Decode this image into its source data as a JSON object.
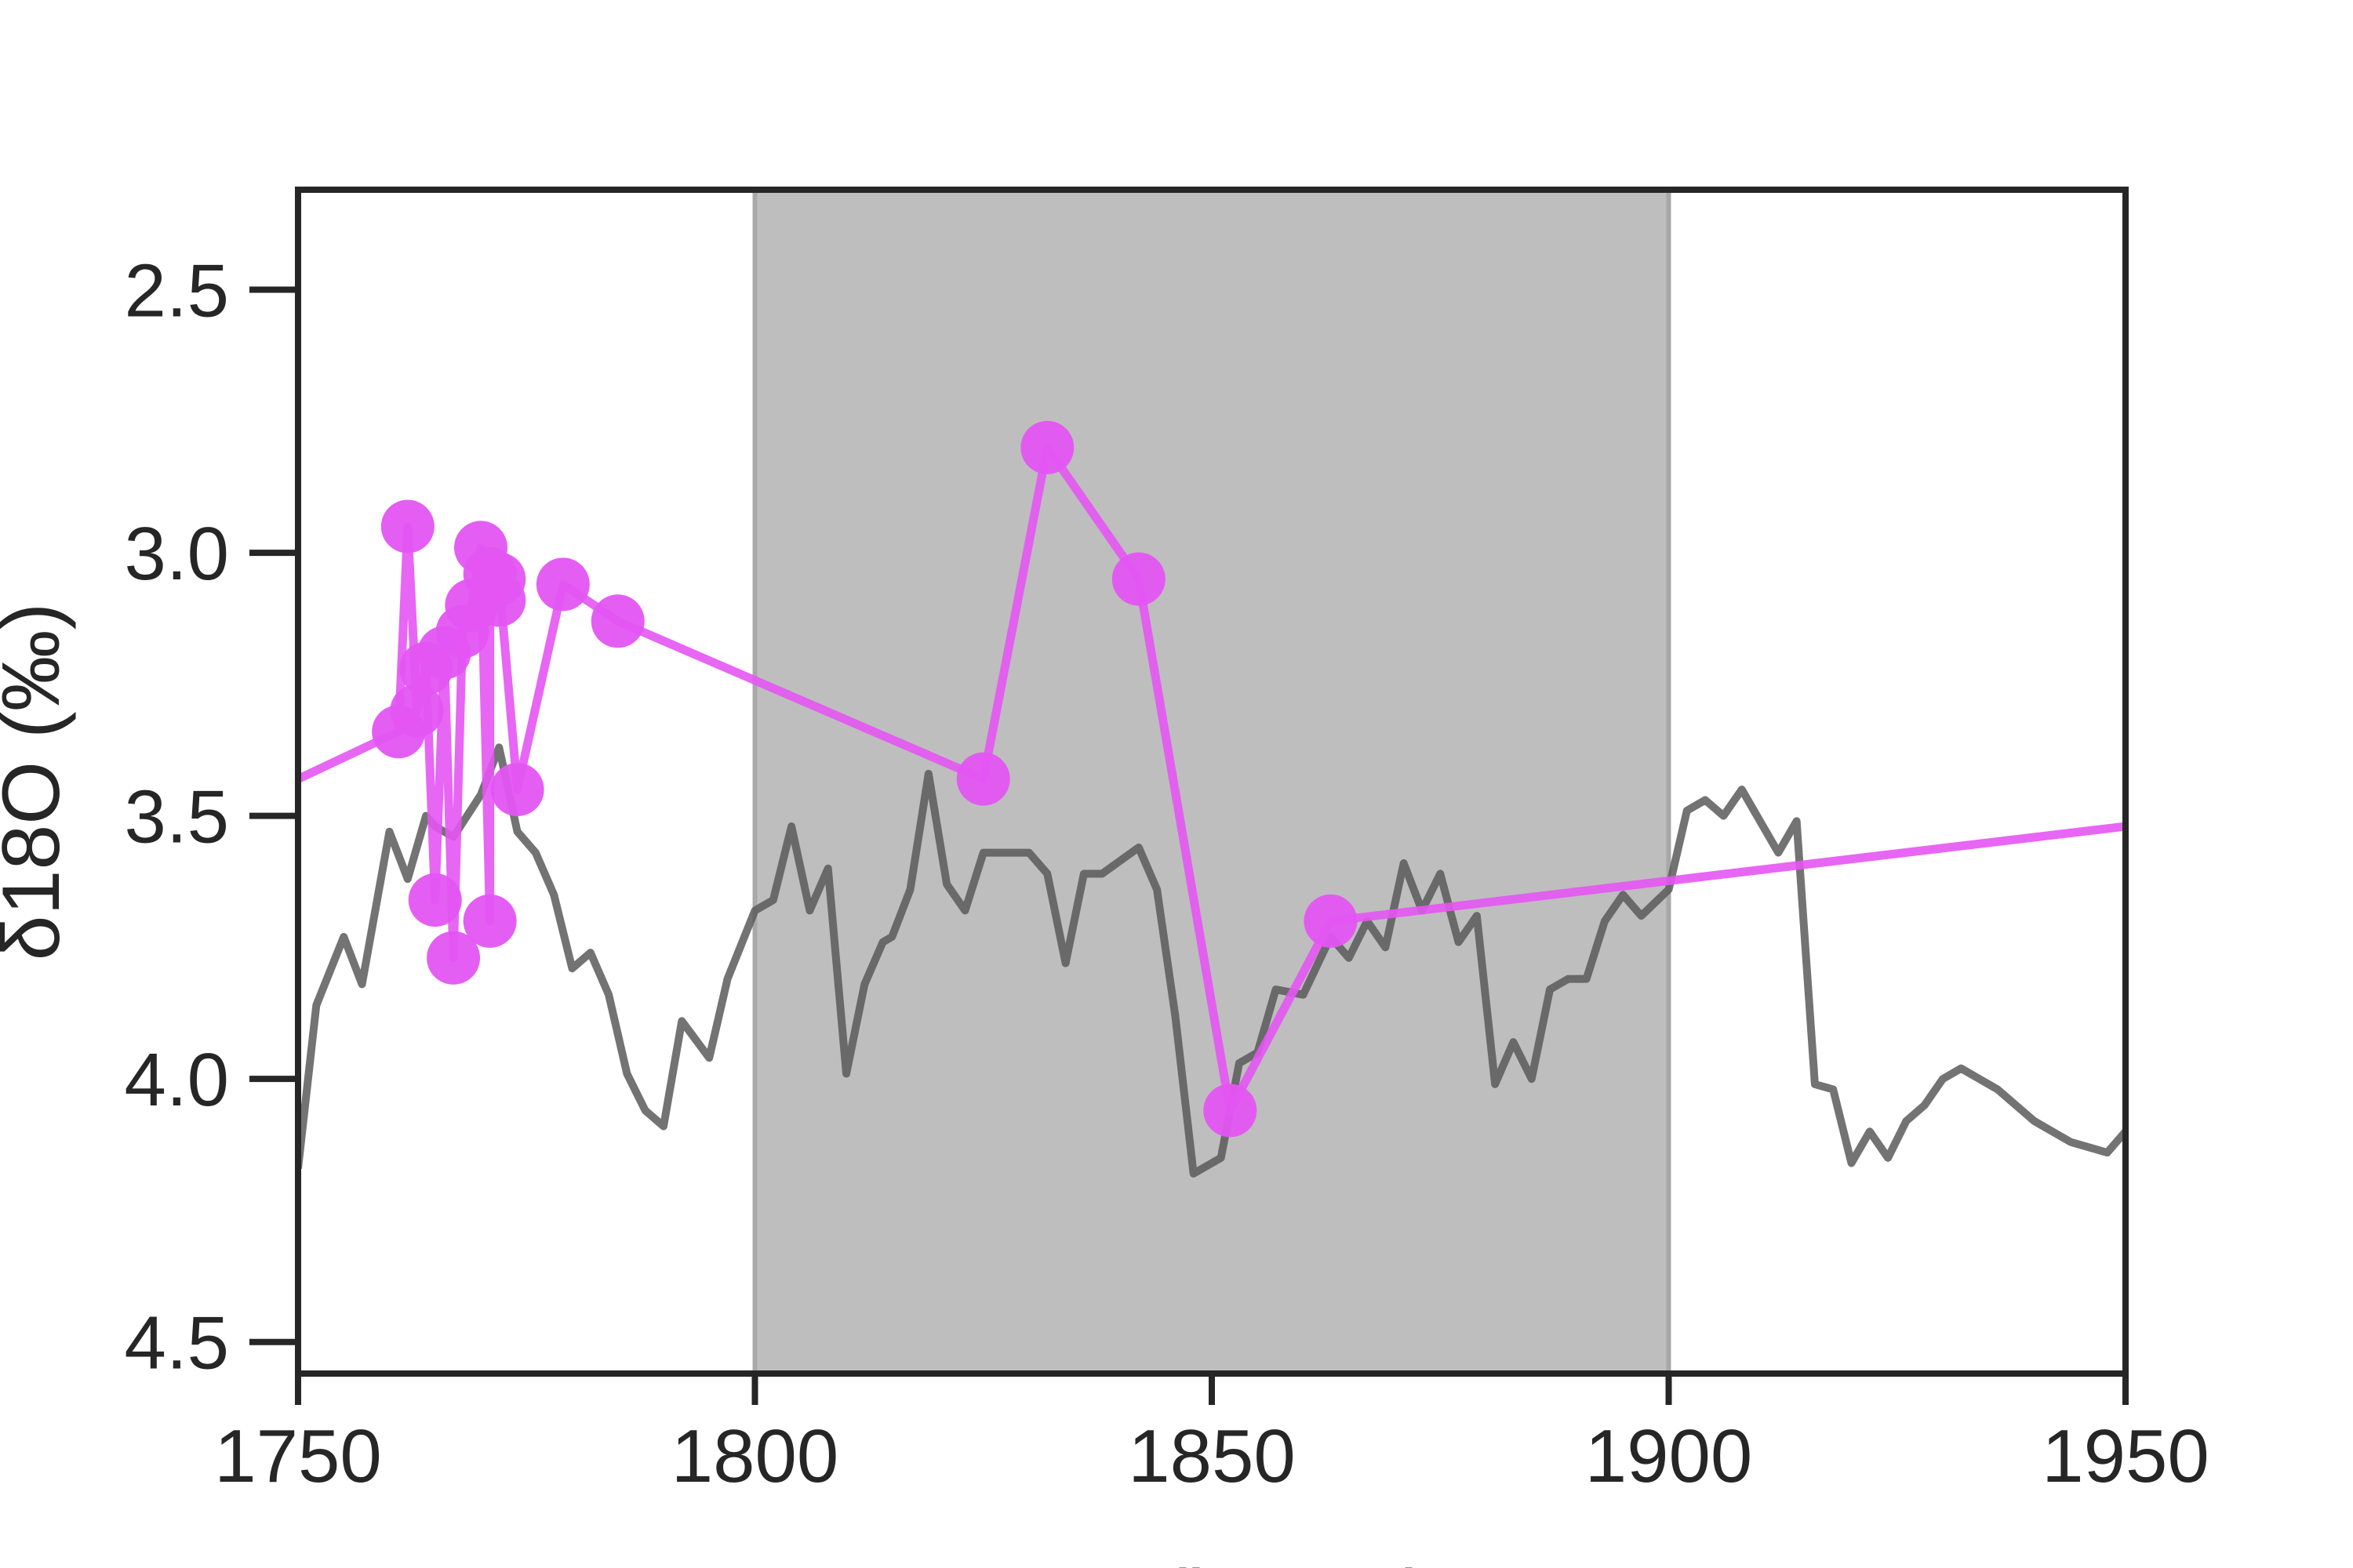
{
  "chart_data": {
    "type": "line",
    "title": "",
    "xlabel": "Age (ka BP)",
    "ylabel": "δ18O (‰)",
    "xlim": [
      1750,
      1950
    ],
    "ylim": [
      4.56,
      2.31
    ],
    "y_inverted": true,
    "xticks": [
      "1750",
      "1800",
      "1850",
      "1900",
      "1950"
    ],
    "yticks": [
      "2.5",
      "3.0",
      "3.5",
      "4.0",
      "4.5"
    ],
    "shaded_interval": {
      "x": [
        1800,
        1900
      ],
      "color": "#bebebe"
    },
    "series": [
      {
        "color": "#5a5a5a",
        "marker": "none",
        "x": [
          1750,
          1752,
          1755,
          1757,
          1760,
          1762,
          1764,
          1765,
          1767,
          1770,
          1772,
          1774,
          1776,
          1778,
          1780,
          1782,
          1784,
          1786,
          1788,
          1790,
          1792,
          1795,
          1797,
          1800,
          1802,
          1804,
          1806,
          1808,
          1810,
          1812,
          1814,
          1815,
          1817,
          1819,
          1821,
          1823,
          1825,
          1827,
          1830,
          1832,
          1834,
          1836,
          1838,
          1842,
          1844,
          1846,
          1848,
          1851,
          1853,
          1855,
          1857,
          1860,
          1863,
          1865,
          1867,
          1869,
          1871,
          1873,
          1875,
          1877,
          1879,
          1881,
          1883,
          1885,
          1887,
          1889,
          1891,
          1893,
          1895,
          1897,
          1900,
          1902,
          1904,
          1906,
          1908,
          1910,
          1912,
          1914,
          1916,
          1918,
          1920,
          1922,
          1924,
          1926,
          1928,
          1930,
          1932,
          1934,
          1936,
          1938,
          1940,
          1942,
          1944,
          1946,
          1948,
          1950
        ],
        "y": [
          4.17,
          3.86,
          3.73,
          3.82,
          3.53,
          3.62,
          3.5,
          3.52,
          3.54,
          3.46,
          3.37,
          3.53,
          3.57,
          3.65,
          3.79,
          3.76,
          3.84,
          3.99,
          4.06,
          4.09,
          3.89,
          3.96,
          3.81,
          3.68,
          3.66,
          3.52,
          3.68,
          3.6,
          3.99,
          3.82,
          3.74,
          3.73,
          3.64,
          3.42,
          3.63,
          3.68,
          3.57,
          3.57,
          3.57,
          3.61,
          3.78,
          3.61,
          3.61,
          3.56,
          3.64,
          3.88,
          4.18,
          4.15,
          3.97,
          3.95,
          3.83,
          3.84,
          3.73,
          3.77,
          3.7,
          3.75,
          3.59,
          3.68,
          3.61,
          3.74,
          3.69,
          4.01,
          3.93,
          4.0,
          3.83,
          3.81,
          3.81,
          3.7,
          3.65,
          3.69,
          3.64,
          3.49,
          3.47,
          3.5,
          3.45,
          3.51,
          3.57,
          3.51,
          4.01,
          4.02,
          4.16,
          4.1,
          4.15,
          4.08,
          4.05,
          4.0,
          3.98,
          4.0,
          4.02,
          4.05,
          4.08,
          4.1,
          4.12,
          4.13,
          4.14,
          4.1
        ]
      },
      {
        "color": "#e455f3",
        "marker": "circle",
        "x": [
          1750,
          1761,
          1762,
          1763,
          1764,
          1765,
          1766,
          1767,
          1768,
          1769,
          1770,
          1771,
          1771,
          1772,
          1772,
          1774,
          1779,
          1785,
          1825,
          1832,
          1842,
          1852,
          1863,
          1950
        ],
        "y": [
          3.43,
          3.34,
          2.95,
          3.3,
          3.22,
          3.66,
          3.19,
          3.77,
          3.15,
          3.1,
          2.99,
          3.7,
          3.04,
          3.09,
          3.05,
          3.45,
          3.06,
          3.13,
          3.43,
          2.8,
          3.05,
          4.06,
          3.7,
          3.52
        ]
      }
    ],
    "colors": {
      "axis": "#262626",
      "shade": "#bebebe",
      "black_series": "#5a5a5a",
      "magenta_series": "#e455f3"
    }
  }
}
